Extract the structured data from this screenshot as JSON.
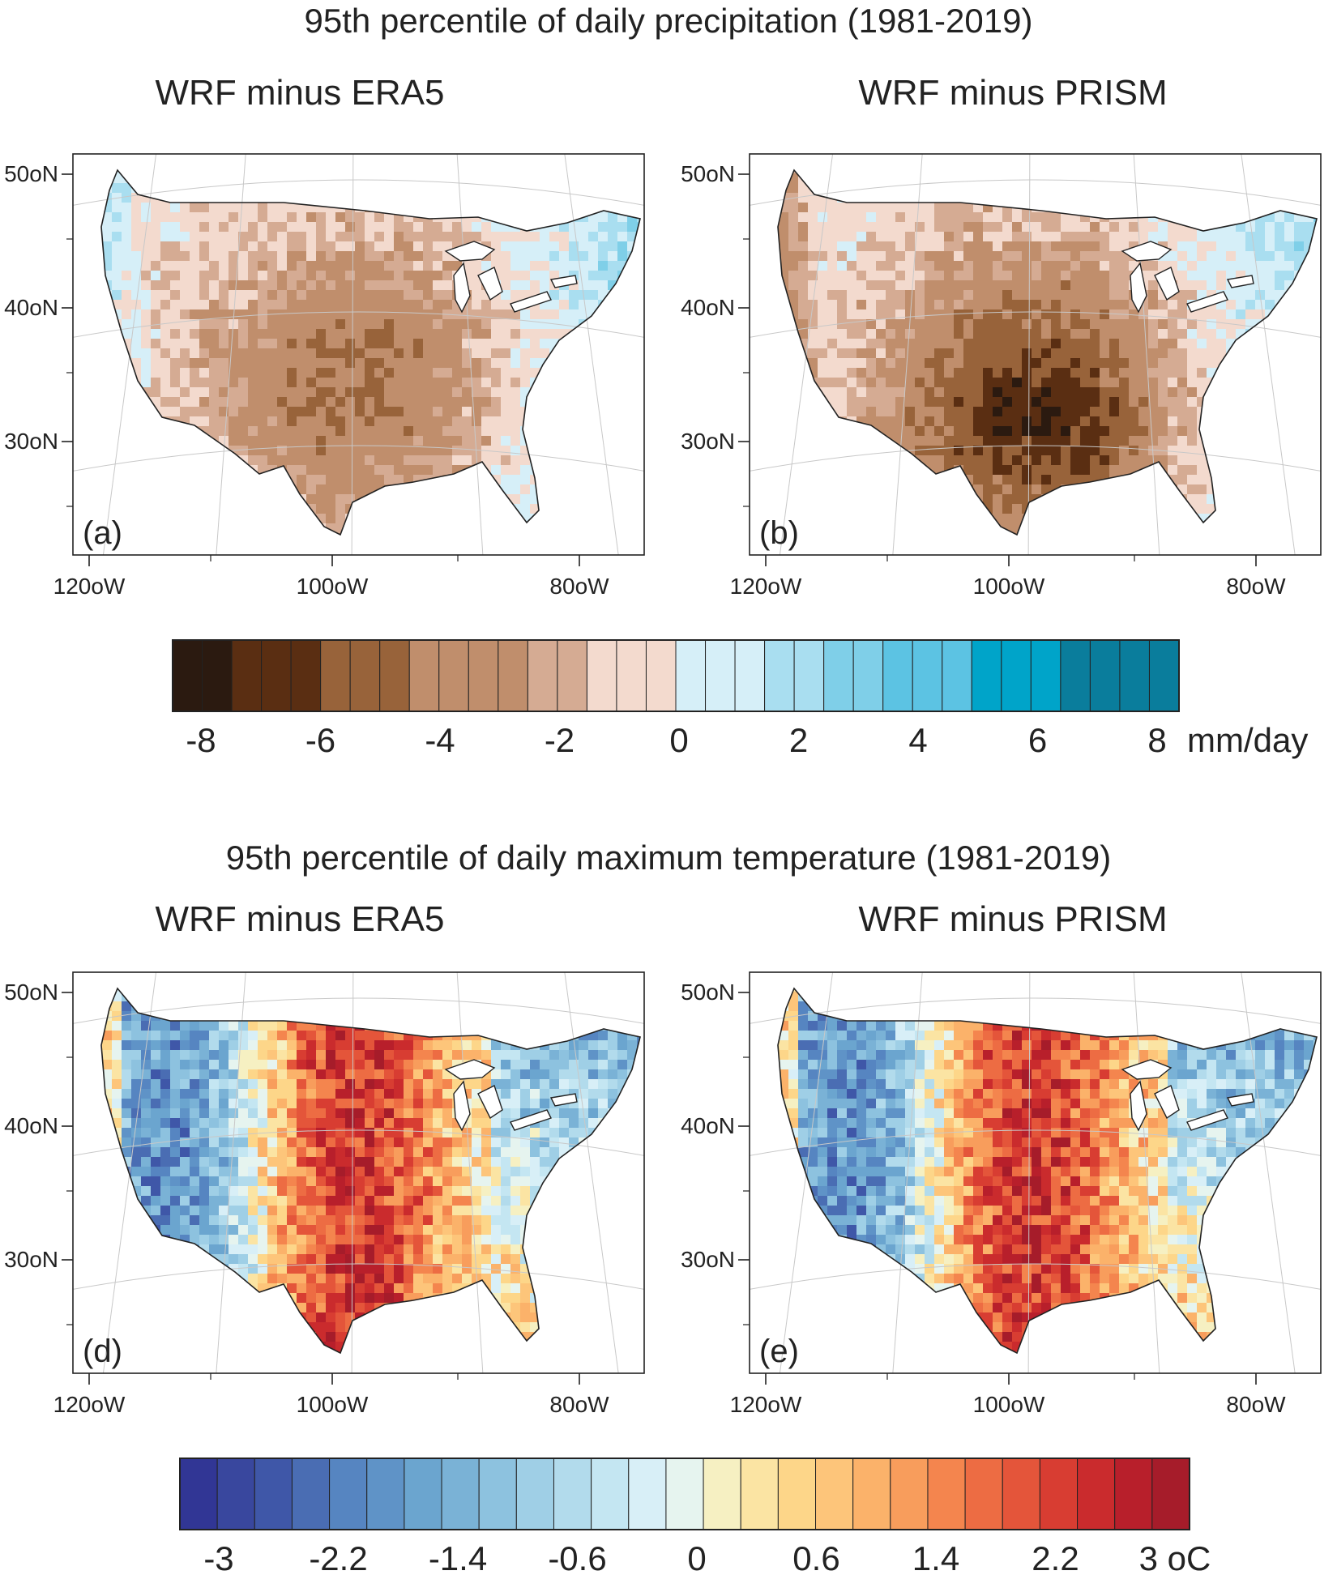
{
  "figure": {
    "title_top": "95th percentile of daily precipitation (1981-2019)",
    "title_bottom": "95th percentile of daily maximum temperature (1981-2019)",
    "subtitle_left": "WRF minus ERA5",
    "subtitle_right": "WRF minus PRISM"
  },
  "chart_data": [
    {
      "type": "heatmap",
      "panel": "(a)",
      "title": "WRF minus ERA5",
      "variable": "95th percentile daily precipitation difference",
      "lon_ticks": [
        "120oW",
        "100oW",
        "80oW"
      ],
      "lat_ticks": [
        "50oN",
        "40oN",
        "30oN"
      ],
      "colorbar": "precip"
    },
    {
      "type": "heatmap",
      "panel": "(b)",
      "title": "WRF minus PRISM",
      "variable": "95th percentile daily precipitation difference",
      "lon_ticks": [
        "120oW",
        "100oW",
        "80oW"
      ],
      "lat_ticks": [
        "50oN",
        "40oN",
        "30oN"
      ],
      "colorbar": "precip"
    },
    {
      "type": "heatmap",
      "panel": "(d)",
      "title": "WRF minus ERA5",
      "variable": "95th percentile daily maximum temperature difference",
      "lon_ticks": [
        "120oW",
        "100oW",
        "80oW"
      ],
      "lat_ticks": [
        "50oN",
        "40oN",
        "30oN"
      ],
      "colorbar": "temp"
    },
    {
      "type": "heatmap",
      "panel": "(e)",
      "title": "WRF minus PRISM",
      "variable": "95th percentile daily maximum temperature difference",
      "lon_ticks": [
        "120oW",
        "100oW",
        "80oW"
      ],
      "lat_ticks": [
        "50oN",
        "40oN",
        "30oN"
      ],
      "colorbar": "temp"
    }
  ],
  "colorbars": {
    "precip": {
      "labels": [
        "-8",
        "-6",
        "-4",
        "-2",
        "0",
        "2",
        "4",
        "6",
        "8"
      ],
      "unit": "mm/day",
      "range": [
        -8.5,
        8.5
      ],
      "colors": [
        "#2b1a10",
        "#2b1a10",
        "#5a2e12",
        "#5a2e12",
        "#5a2e12",
        "#98633a",
        "#98633a",
        "#98633a",
        "#c08e6c",
        "#c08e6c",
        "#c08e6c",
        "#c08e6c",
        "#d5ab93",
        "#d5ab93",
        "#f3dace",
        "#f3dace",
        "#f3dace",
        "#d6eff8",
        "#d6eff8",
        "#d6eff8",
        "#a9def0",
        "#a9def0",
        "#7fcfe8",
        "#7fcfe8",
        "#5cc3e3",
        "#5cc3e3",
        "#5cc3e3",
        "#00a4c9",
        "#00a4c9",
        "#00a4c9",
        "#0a7d9c",
        "#0a7d9c",
        "#0a7d9c",
        "#0a7d9c"
      ]
    },
    "temp": {
      "labels": [
        "-3",
        "-2.2",
        "-1.4",
        "-0.6",
        "0",
        "0.6",
        "1.4",
        "2.2",
        "3 oC"
      ],
      "range": [
        -3.1,
        3.1
      ],
      "colors": [
        "#313695",
        "#39479e",
        "#3f57a8",
        "#4a6db3",
        "#5685c1",
        "#5f93c7",
        "#6ba5cf",
        "#7ab2d6",
        "#8dc2df",
        "#9fcfe6",
        "#b2dbec",
        "#c4e6f2",
        "#d8eff7",
        "#e6f4ef",
        "#f6f0c2",
        "#fbe4a3",
        "#fdd689",
        "#fdc57a",
        "#fbb26a",
        "#f89d5c",
        "#f4854e",
        "#ed6c43",
        "#e4553a",
        "#d83d32",
        "#ca2b2d",
        "#b81f2b",
        "#a61c2a"
      ]
    }
  }
}
